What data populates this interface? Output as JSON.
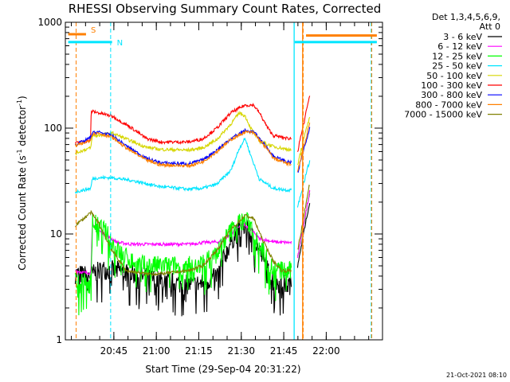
{
  "chart_data": {
    "type": "line",
    "title": "RHESSI Observing Summary Count Rates, Corrected",
    "xlabel": "Start Time (29-Sep-04 20:31:22)",
    "ylabel_prefix": "Corrected Count Rate (s",
    "ylabel_sup": "-1",
    "ylabel_mid": " detector",
    "ylabel_sup2": "-1",
    "ylabel_suffix": ")",
    "y_scale": "log",
    "ylim": [
      1,
      1000
    ],
    "xlim_min": [
      0,
      106.5
    ],
    "x_ticks": [
      {
        "t": 13.63,
        "label": "20:45"
      },
      {
        "t": 28.63,
        "label": "21:00"
      },
      {
        "t": 43.63,
        "label": "21:15"
      },
      {
        "t": 58.63,
        "label": "21:30"
      },
      {
        "t": 73.63,
        "label": "21:45"
      },
      {
        "t": 88.63,
        "label": "22:00"
      }
    ],
    "y_ticks": [
      {
        "v": 1,
        "label": "1"
      },
      {
        "v": 10,
        "label": "10"
      },
      {
        "v": 100,
        "label": "100"
      },
      {
        "v": 1000,
        "label": "1000"
      }
    ],
    "legend_header": [
      "Det 1,3,4,5,6,9,",
      "Att 0"
    ],
    "legend_position": "right",
    "series": [
      {
        "name": "3 - 6 keV",
        "color": "#000000",
        "x": [
          0,
          3,
          5.5,
          6,
          10,
          15,
          20,
          30,
          40,
          45,
          50,
          52,
          55,
          58,
          60,
          62,
          65,
          68,
          70,
          75,
          76.5
        ],
        "y": [
          4.2,
          4.1,
          4,
          4.2,
          4.6,
          4.5,
          4.2,
          3.6,
          3.3,
          3.4,
          4,
          5.5,
          8.5,
          11,
          12,
          10,
          7,
          4.5,
          3.5,
          3.3,
          3.3
        ]
      },
      {
        "name": "6 - 12 keV",
        "color": "#ff00ff",
        "x": [
          0,
          3,
          5.5,
          6,
          10,
          15,
          20,
          30,
          40,
          45,
          50,
          52,
          55,
          58,
          60,
          62,
          65,
          68,
          70,
          75,
          76.5
        ],
        "y": [
          4.5,
          4.3,
          4.3,
          12,
          10,
          8.3,
          8,
          8,
          8,
          8.3,
          8.4,
          8.6,
          10,
          12,
          12,
          11,
          9,
          8.7,
          8.4,
          8.3,
          8.3
        ]
      },
      {
        "name": "12 - 25 keV",
        "color": "#00ff00",
        "x": [
          0,
          3,
          5.5,
          6,
          10,
          15,
          20,
          25,
          30,
          40,
          45,
          50,
          53,
          57,
          60,
          62,
          65,
          68,
          70,
          73,
          76.5
        ],
        "y": [
          3.5,
          3.4,
          3.4,
          13,
          11,
          7,
          5.5,
          5,
          5,
          5,
          5.2,
          6.5,
          9,
          12.5,
          13.5,
          12,
          8,
          5.5,
          4.7,
          4.5,
          4.4
        ]
      },
      {
        "name": "25 - 50 keV",
        "color": "#00e5ff",
        "x": [
          0,
          3,
          5.5,
          6,
          8,
          13,
          20,
          30,
          40,
          45,
          50,
          55,
          58,
          60,
          62,
          65,
          70,
          75,
          76.5
        ],
        "y": [
          25,
          26,
          27,
          33,
          34,
          34,
          32,
          28,
          26.5,
          27,
          29.5,
          40,
          65,
          80,
          55,
          33,
          27,
          26,
          26
        ]
      },
      {
        "name": "50 - 100 keV",
        "color": "#d6d600",
        "x": [
          0,
          3,
          5.5,
          6,
          8,
          13,
          20,
          25,
          30,
          40,
          45,
          50,
          55,
          58,
          60,
          62,
          65,
          70,
          75,
          76.5
        ],
        "y": [
          58,
          62,
          65,
          84,
          85,
          90,
          75,
          66,
          63,
          62,
          65,
          78,
          110,
          140,
          130,
          100,
          75,
          67,
          63,
          62
        ]
      },
      {
        "name": "100 - 300 keV",
        "color": "#ff0000",
        "x": [
          0,
          3,
          5.5,
          5.6,
          8,
          13,
          20,
          25,
          30,
          40,
          45,
          50,
          55,
          60,
          63,
          65,
          68,
          70,
          75,
          76.5
        ],
        "y": [
          72,
          75,
          77,
          145,
          140,
          130,
          100,
          80,
          74,
          74,
          79,
          100,
          140,
          165,
          165,
          140,
          100,
          85,
          80,
          80
        ]
      },
      {
        "name": "300 - 800 keV",
        "color": "#0000ff",
        "x": [
          0,
          3,
          5.5,
          6,
          8,
          13,
          18,
          25,
          30,
          40,
          45,
          50,
          55,
          60,
          63,
          65,
          68,
          70,
          75,
          76.5
        ],
        "y": [
          70,
          75,
          82,
          90,
          92,
          85,
          68,
          52,
          47,
          46,
          50,
          62,
          80,
          95,
          92,
          80,
          64,
          54,
          48,
          47
        ]
      },
      {
        "name": "800 - 7000 keV",
        "color": "#ff8000",
        "x": [
          0,
          3,
          5.5,
          6,
          8,
          13,
          18,
          25,
          30,
          40,
          45,
          50,
          55,
          60,
          63,
          65,
          68,
          70,
          75,
          76.5
        ],
        "y": [
          68,
          72,
          78,
          88,
          90,
          82,
          65,
          50,
          45,
          44,
          48,
          60,
          78,
          92,
          90,
          78,
          62,
          52,
          46,
          45
        ]
      },
      {
        "name": "7000 - 15000 keV",
        "color": "#808000",
        "x": [
          0,
          3,
          5.5,
          8,
          13,
          18,
          25,
          30,
          40,
          45,
          50,
          55,
          60,
          63,
          66,
          70,
          73,
          76.5
        ],
        "y": [
          12,
          14,
          16,
          13,
          7,
          4.5,
          4.2,
          4.2,
          4.5,
          5,
          7,
          11,
          15,
          14,
          9,
          5.5,
          4.5,
          4.5
        ]
      }
    ],
    "post_gap": {
      "series_order": [
        "300 - 800 keV",
        "800 - 7000 keV",
        "50 - 100 keV",
        "100 - 300 keV",
        "25 - 50 keV",
        "12 - 25 keV",
        "6 - 12 keV",
        "3 - 6 keV",
        "7000 - 15000 keV"
      ],
      "x0": 78.5,
      "x1": 82.8,
      "y0": [
        38,
        40,
        45,
        60,
        18,
        6,
        6,
        5,
        7
      ],
      "y1": [
        100,
        110,
        130,
        200,
        50,
        25,
        25,
        20,
        30
      ]
    },
    "flags": [
      {
        "label": "S",
        "color": "#ff8000",
        "x0": -2.5,
        "x1": 3.8,
        "y": 1000
      },
      {
        "label": "N",
        "color": "#00e5ff",
        "x0": -2.5,
        "x1": 13.0,
        "y": 650
      },
      {
        "label": "",
        "color": "#ff8000",
        "x0": 81.5,
        "x1": 106.5,
        "y": 750
      },
      {
        "label": "",
        "color": "#00e5ff",
        "x0": 77.5,
        "x1": 106.5,
        "y": 650
      }
    ],
    "vlines": [
      {
        "t": 0.3,
        "color": "#ff8000"
      },
      {
        "t": 12.5,
        "color": "#00e5ff"
      },
      {
        "t": 80.5,
        "color": "#ff8000"
      },
      {
        "t": 104.5,
        "color": "#00e5ff"
      },
      {
        "t": 104.7,
        "color": "#ff8000"
      }
    ],
    "solid_vlines": [
      {
        "t": 77.3,
        "color": "#00e5ff"
      },
      {
        "t": 80.3,
        "color": "#ff8000"
      }
    ],
    "date_stamp": "21-Oct-2021 08:10"
  }
}
